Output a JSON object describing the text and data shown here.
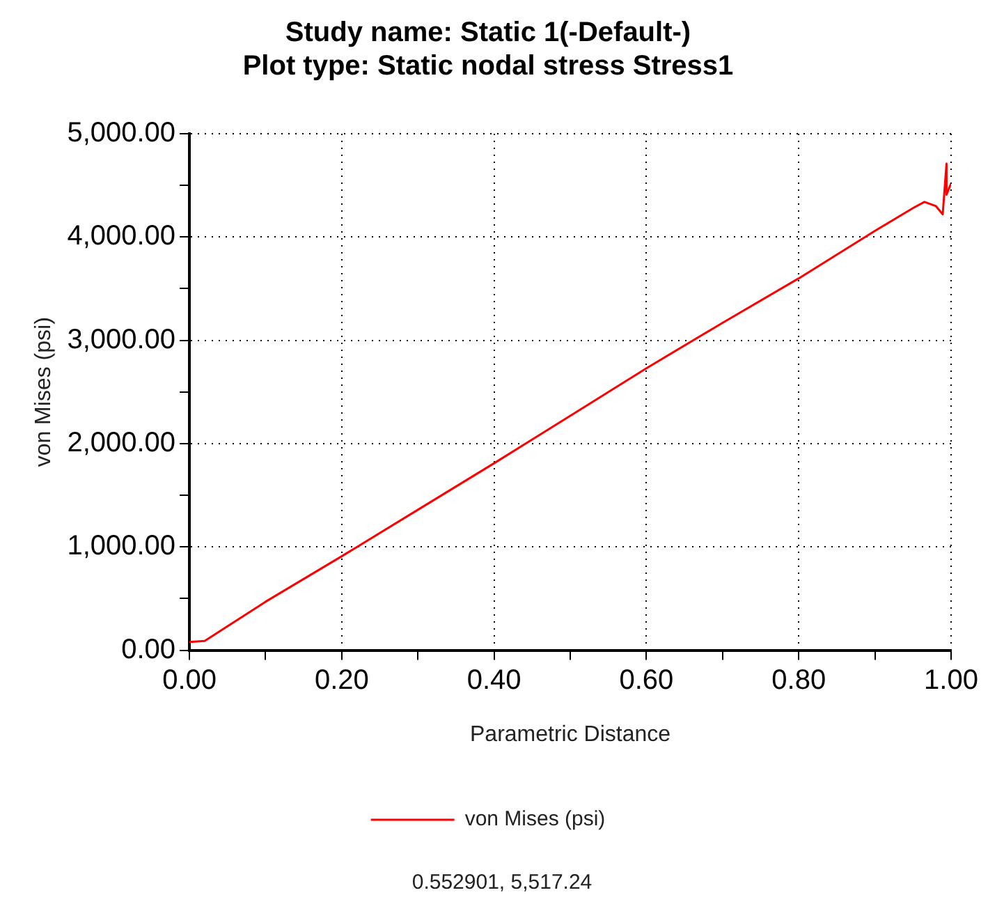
{
  "chart_data": {
    "type": "line",
    "title": [
      "Study name: Static 1(-Default-)",
      "Plot type: Static nodal stress Stress1"
    ],
    "xlabel": "Parametric Distance",
    "ylabel": "von Mises (psi)",
    "x": [
      0,
      0.02,
      0.1,
      0.2,
      0.3,
      0.4,
      0.5,
      0.6,
      0.7,
      0.8,
      0.9,
      0.95,
      0.965,
      0.98,
      0.989,
      0.994,
      0.994,
      1.0
    ],
    "series": [
      {
        "name": "von Mises (psi)",
        "color": "#ff0000",
        "values": [
          80,
          90,
          470,
          910,
          1360,
          1810,
          2270,
          2730,
          3170,
          3600,
          4060,
          4280,
          4340,
          4300,
          4220,
          4710,
          4410,
          4520
        ]
      }
    ],
    "xlim": [
      0,
      1
    ],
    "ylim": [
      0,
      5000
    ],
    "xticks": [
      {
        "value": 0,
        "label": "0.00"
      },
      {
        "value": 0.1,
        "label": null
      },
      {
        "value": 0.2,
        "label": "0.20"
      },
      {
        "value": 0.3,
        "label": null
      },
      {
        "value": 0.4,
        "label": "0.40"
      },
      {
        "value": 0.5,
        "label": null
      },
      {
        "value": 0.6,
        "label": "0.60"
      },
      {
        "value": 0.7,
        "label": null
      },
      {
        "value": 0.8,
        "label": "0.80"
      },
      {
        "value": 0.9,
        "label": null
      },
      {
        "value": 1,
        "label": "1.00"
      }
    ],
    "yticks": [
      {
        "value": 0,
        "label": "0.00"
      },
      {
        "value": 500,
        "label": null
      },
      {
        "value": 1000,
        "label": "1,000.00"
      },
      {
        "value": 1500,
        "label": null
      },
      {
        "value": 2000,
        "label": "2,000.00"
      },
      {
        "value": 2500,
        "label": null
      },
      {
        "value": 3000,
        "label": "3,000.00"
      },
      {
        "value": 3500,
        "label": null
      },
      {
        "value": 4000,
        "label": "4,000.00"
      },
      {
        "value": 4500,
        "label": null
      },
      {
        "value": 5000,
        "label": "5,000.00"
      }
    ],
    "grid": true,
    "legend": "bottom",
    "marker": "none",
    "line_style": "solid",
    "annotations": [
      "0.552901, 5,517.24"
    ]
  }
}
